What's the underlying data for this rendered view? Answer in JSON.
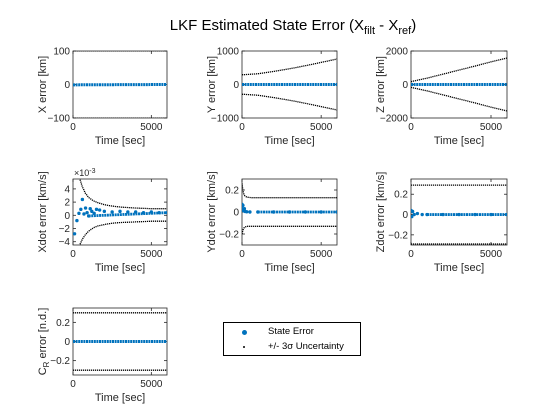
{
  "figure": {
    "title_main": "LKF Estimated State Error (X",
    "title_sub1": "filt",
    "title_mid": " - X",
    "title_sub2": "ref",
    "title_end": ")"
  },
  "colors": {
    "state_error": "#0072BD",
    "uncertainty": "#000000",
    "axes": "#262626"
  },
  "legend": {
    "entries": [
      {
        "label": "State Error",
        "marker": "blue-dot"
      },
      {
        "label": "+/- 3σ Uncertainty",
        "marker": "black-point"
      }
    ]
  },
  "chart_data": [
    {
      "type": "scatter",
      "xlabel": "Time [sec]",
      "ylabel": "X error [km]",
      "xlim": [
        0,
        6000
      ],
      "ylim": [
        -100,
        100
      ],
      "xticks": [
        0,
        5000
      ],
      "yticks": [
        -100,
        0,
        100
      ],
      "series": [
        {
          "name": "State Error",
          "x": [
            0,
            6000
          ],
          "y": [
            -1,
            0
          ]
        },
        {
          "name": "+/- 3σ Uncertainty",
          "upper": {
            "x": [
              0,
              6000
            ],
            "y": [
              101,
              101
            ]
          },
          "lower": {
            "x": [
              0,
              6000
            ],
            "y": [
              -101,
              -101
            ]
          }
        }
      ]
    },
    {
      "type": "scatter",
      "xlabel": "Time [sec]",
      "ylabel": "Y error [km]",
      "xlim": [
        0,
        6000
      ],
      "ylim": [
        -1000,
        1000
      ],
      "xticks": [
        0,
        5000
      ],
      "yticks": [
        -1000,
        0,
        1000
      ],
      "series": [
        {
          "name": "State Error",
          "x": [
            0,
            6000
          ],
          "y": [
            0,
            0
          ]
        },
        {
          "name": "+/- 3σ Uncertainty",
          "upper": {
            "x": [
              0,
              1000,
              2000,
              3000,
              4000,
              5000,
              6000
            ],
            "y": [
              290,
              320,
              390,
              470,
              560,
              660,
              760
            ]
          },
          "lower": {
            "x": [
              0,
              1000,
              2000,
              3000,
              4000,
              5000,
              6000
            ],
            "y": [
              -290,
              -320,
              -390,
              -470,
              -560,
              -660,
              -760
            ]
          }
        }
      ]
    },
    {
      "type": "scatter",
      "xlabel": "Time [sec]",
      "ylabel": "Z error [km]",
      "xlim": [
        0,
        6000
      ],
      "ylim": [
        -2000,
        2000
      ],
      "xticks": [
        0,
        5000
      ],
      "yticks": [
        -2000,
        0,
        2000
      ],
      "series": [
        {
          "name": "State Error",
          "x": [
            0,
            6000
          ],
          "y": [
            0,
            0
          ]
        },
        {
          "name": "+/- 3σ Uncertainty",
          "upper": {
            "x": [
              0,
              1000,
              2000,
              3000,
              4000,
              5000,
              6000
            ],
            "y": [
              170,
              380,
              620,
              860,
              1100,
              1350,
              1580
            ]
          },
          "lower": {
            "x": [
              0,
              1000,
              2000,
              3000,
              4000,
              5000,
              6000
            ],
            "y": [
              -170,
              -380,
              -620,
              -860,
              -1100,
              -1350,
              -1580
            ]
          }
        }
      ]
    },
    {
      "type": "scatter",
      "xlabel": "Time [sec]",
      "ylabel": "Xdot error [km/s]",
      "multiplier": "×10",
      "multiplier_exp": "-3",
      "xlim": [
        0,
        6000
      ],
      "ylim": [
        -4.5,
        5.5
      ],
      "xticks": [
        0,
        5000
      ],
      "yticks": [
        -4,
        -2,
        0,
        2,
        4
      ],
      "series": [
        {
          "name": "State Error",
          "x": [
            100,
            250,
            380,
            500,
            600,
            700,
            800,
            900,
            1000,
            1100,
            1200,
            1350,
            1500,
            1700,
            2000,
            2500,
            3000,
            3500,
            4000,
            4500,
            5000,
            5500,
            6000
          ],
          "y": [
            -2.8,
            -0.8,
            0.3,
            0.9,
            2.4,
            0.2,
            1.1,
            0.4,
            -0.1,
            1.0,
            0.6,
            0.3,
            0.9,
            0.8,
            0.6,
            0.5,
            0.6,
            0.5,
            0.5,
            0.4,
            0.5,
            0.4,
            0.4
          ]
        },
        {
          "name": "+/- 3σ Uncertainty",
          "upper": {
            "x": [
              450,
              600,
              800,
              1000,
              1300,
              1600,
              2000,
              2500,
              3000,
              4000,
              5000,
              6000
            ],
            "y": [
              5.4,
              4.3,
              3.3,
              2.7,
              2.2,
              1.9,
              1.6,
              1.4,
              1.25,
              1.1,
              1.0,
              1.0
            ]
          },
          "lower": {
            "x": [
              450,
              600,
              800,
              1000,
              1300,
              1600,
              2000,
              2500,
              3000,
              4000,
              5000,
              6000
            ],
            "y": [
              -4.4,
              -3.6,
              -2.9,
              -2.4,
              -1.9,
              -1.6,
              -1.4,
              -1.2,
              -1.1,
              -1.0,
              -0.9,
              -0.9
            ]
          }
        }
      ]
    },
    {
      "type": "scatter",
      "xlabel": "Time [sec]",
      "ylabel": "Ydot error [km/s]",
      "xlim": [
        0,
        6000
      ],
      "ylim": [
        -0.3,
        0.3
      ],
      "xticks": [
        0,
        5000
      ],
      "yticks": [
        -0.2,
        0,
        0.2
      ],
      "series": [
        {
          "name": "State Error",
          "x": [
            0,
            30,
            60,
            100,
            150,
            200,
            300,
            500,
            1000,
            2000,
            3000,
            4000,
            5000,
            6000
          ],
          "y": [
            0.07,
            0.03,
            0.06,
            0.01,
            0.03,
            0.005,
            0.002,
            0.0,
            0.0,
            0.0,
            0.0,
            0.0,
            0.0,
            0.0
          ]
        },
        {
          "name": "+/- 3σ Uncertainty",
          "upper": {
            "x": [
              0,
              60,
              150,
              300,
              600,
              1000,
              2000,
              3000,
              4000,
              5000,
              6000
            ],
            "y": [
              0.26,
              0.19,
              0.15,
              0.135,
              0.13,
              0.13,
              0.13,
              0.13,
              0.13,
              0.13,
              0.13
            ]
          },
          "lower": {
            "x": [
              0,
              60,
              150,
              300,
              600,
              1000,
              2000,
              3000,
              4000,
              5000,
              6000
            ],
            "y": [
              -0.2,
              -0.16,
              -0.14,
              -0.13,
              -0.13,
              -0.13,
              -0.13,
              -0.13,
              -0.13,
              -0.13,
              -0.13
            ]
          }
        }
      ]
    },
    {
      "type": "scatter",
      "xlabel": "Time [sec]",
      "ylabel": "Zdot error [km/s]",
      "xlim": [
        0,
        6000
      ],
      "ylim": [
        -0.3,
        0.35
      ],
      "xticks": [
        0,
        5000
      ],
      "yticks": [
        -0.2,
        0,
        0.2
      ],
      "series": [
        {
          "name": "State Error",
          "x": [
            0,
            50,
            100,
            200,
            400,
            700,
            1000,
            2000,
            3000,
            4000,
            5000,
            6000
          ],
          "y": [
            0.04,
            -0.02,
            0.03,
            0.0,
            0.01,
            0.0,
            0.0,
            0.0,
            0.0,
            0.0,
            0.0,
            0.0
          ]
        },
        {
          "name": "+/- 3σ Uncertainty",
          "upper": {
            "x": [
              0,
              6000
            ],
            "y": [
              0.29,
              0.29
            ]
          },
          "lower": {
            "x": [
              0,
              6000
            ],
            "y": [
              -0.29,
              -0.29
            ]
          }
        }
      ]
    },
    {
      "type": "scatter",
      "xlabel": "Time [sec]",
      "ylabel_main": "C",
      "ylabel_sub": "R",
      "ylabel_end": " error [n.d.]",
      "xlim": [
        0,
        6000
      ],
      "ylim": [
        -0.35,
        0.35
      ],
      "xticks": [
        0,
        5000
      ],
      "yticks": [
        -0.2,
        0,
        0.2
      ],
      "series": [
        {
          "name": "State Error",
          "x": [
            0,
            6000
          ],
          "y": [
            0,
            0
          ]
        },
        {
          "name": "+/- 3σ Uncertainty",
          "upper": {
            "x": [
              0,
              6000
            ],
            "y": [
              0.3,
              0.3
            ]
          },
          "lower": {
            "x": [
              0,
              6000
            ],
            "y": [
              -0.3,
              -0.3
            ]
          }
        }
      ]
    }
  ]
}
